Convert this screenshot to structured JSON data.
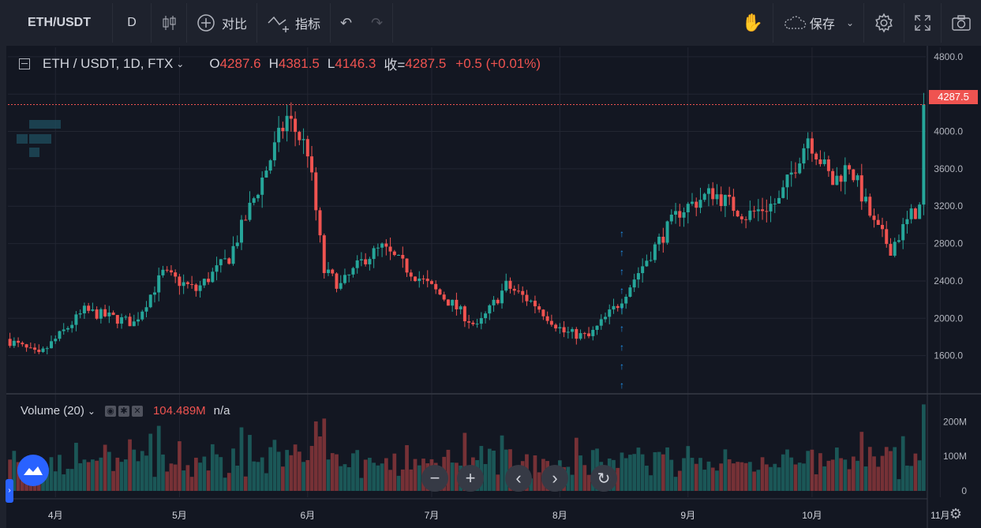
{
  "toolbar": {
    "symbol": "ETH/USDT",
    "interval": "D",
    "compare_label": "对比",
    "indicators_label": "指标",
    "save_label": "保存"
  },
  "legend": {
    "title": "ETH / USDT, 1D, FTX",
    "o_label": "O",
    "o_value": "4287.6",
    "h_label": "H",
    "h_value": "4381.5",
    "l_label": "L",
    "l_value": "4146.3",
    "c_label": "收=",
    "c_value": "4287.5",
    "change": "+0.5 (+0.01%)"
  },
  "volume_legend": {
    "label": "Volume (20)",
    "value": "104.489M",
    "extra": "n/a"
  },
  "last_price_tag": "4287.5",
  "colors": {
    "up": "#26a69a",
    "down": "#ef5350",
    "bg": "#131722",
    "grid": "#232632",
    "accent": "#2962ff"
  },
  "chart_data": {
    "type": "candlestick",
    "last_price": 4287.5,
    "price_axis": {
      "labels": [
        "4800.0",
        "4400.0",
        "4000.0",
        "3600.0",
        "3200.0",
        "2800.0",
        "2400.0",
        "2000.0",
        "1600.0"
      ],
      "values": [
        4800,
        4400,
        4000,
        3600,
        3200,
        2800,
        2400,
        2000,
        1600
      ],
      "range": [
        1200,
        4900
      ]
    },
    "volume_axis": {
      "labels": [
        "200M",
        "100M",
        "0"
      ],
      "values": [
        200,
        100,
        0
      ],
      "range": [
        0,
        260
      ]
    },
    "time_axis": {
      "labels": [
        "4月",
        "5月",
        "6月",
        "7月",
        "8月",
        "9月",
        "10月",
        "11月"
      ],
      "day_index": [
        0,
        30,
        61,
        91,
        122,
        153,
        183,
        214
      ]
    },
    "start_offset_days": -11,
    "days": 222
  }
}
